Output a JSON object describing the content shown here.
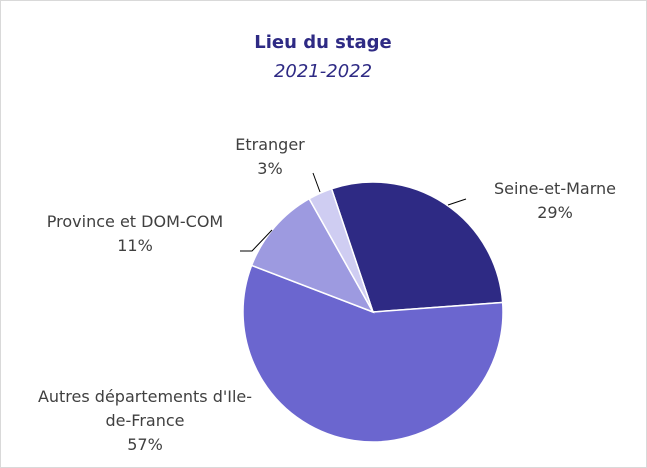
{
  "chart_data": {
    "type": "pie",
    "title": "Lieu du stage",
    "subtitle": "2021-2022",
    "categories": [
      "Seine-et-Marne",
      "Autres départements d'Ile-de-France",
      "Province et DOM-COM",
      "Etranger"
    ],
    "values": [
      29,
      57,
      11,
      3
    ],
    "value_labels": [
      "29%",
      "57%",
      "11%",
      "3%"
    ],
    "colors": [
      "#2e2a84",
      "#6b66cf",
      "#9d9ae0",
      "#cfcdf2"
    ]
  }
}
